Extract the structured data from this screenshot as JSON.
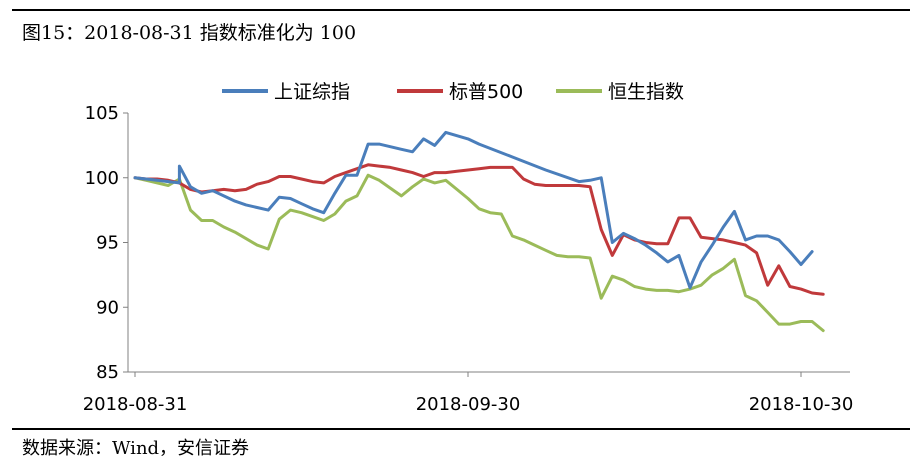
{
  "figure": {
    "title": "图15：2018-08-31 指数标准化为 100",
    "source": "数据来源：Wind，安信证券"
  },
  "chart_data": {
    "type": "line",
    "title": "",
    "xlabel": "",
    "ylabel": "",
    "ylim": [
      85,
      105
    ],
    "yticks": [
      "85",
      "90",
      "95",
      "100",
      "105"
    ],
    "x_tick_labels": [
      "2018-08-31",
      "2018-09-30",
      "2018-10-30"
    ],
    "x_range_days": [
      0,
      60
    ],
    "grid": false,
    "legend_position": "top",
    "series": [
      {
        "name": "上证综指",
        "color": "#4a7ebb",
        "points": [
          [
            0,
            100
          ],
          [
            1,
            99.9
          ],
          [
            2,
            99.8
          ],
          [
            3,
            99.7
          ],
          [
            4,
            99.6
          ],
          [
            4,
            100.9
          ],
          [
            5,
            99.3
          ],
          [
            6,
            98.8
          ],
          [
            7,
            99.0
          ],
          [
            8,
            98.6
          ],
          [
            9,
            98.2
          ],
          [
            10,
            97.9
          ],
          [
            11,
            97.7
          ],
          [
            12,
            97.5
          ],
          [
            13,
            98.5
          ],
          [
            14,
            98.4
          ],
          [
            15,
            98.0
          ],
          [
            16,
            97.6
          ],
          [
            17,
            97.3
          ],
          [
            18,
            98.8
          ],
          [
            19,
            100.2
          ],
          [
            20,
            100.2
          ],
          [
            21,
            102.6
          ],
          [
            22,
            102.6
          ],
          [
            23,
            102.4
          ],
          [
            24,
            102.2
          ],
          [
            25,
            102.0
          ],
          [
            26,
            103.0
          ],
          [
            27,
            102.5
          ],
          [
            28,
            103.5
          ],
          [
            30,
            103.0
          ],
          [
            31,
            102.6
          ],
          [
            34,
            101.6
          ],
          [
            37,
            100.6
          ],
          [
            40,
            99.7
          ],
          [
            41,
            99.8
          ],
          [
            42,
            100.0
          ],
          [
            43,
            95.0
          ],
          [
            44,
            95.7
          ],
          [
            45,
            95.3
          ],
          [
            46,
            94.8
          ],
          [
            47,
            94.2
          ],
          [
            48,
            93.5
          ],
          [
            49,
            94.0
          ],
          [
            50,
            91.5
          ],
          [
            51,
            93.5
          ],
          [
            52,
            94.8
          ],
          [
            53,
            96.2
          ],
          [
            54,
            97.4
          ],
          [
            55,
            95.2
          ],
          [
            56,
            95.5
          ],
          [
            57,
            95.5
          ],
          [
            58,
            95.2
          ],
          [
            59,
            94.3
          ],
          [
            60,
            93.3
          ],
          [
            61,
            94.3
          ]
        ]
      },
      {
        "name": "标普500",
        "color": "#c0393b",
        "points": [
          [
            0,
            100
          ],
          [
            1,
            99.9
          ],
          [
            2,
            99.9
          ],
          [
            3,
            99.8
          ],
          [
            4,
            99.6
          ],
          [
            5,
            99.1
          ],
          [
            6,
            98.9
          ],
          [
            7,
            99.0
          ],
          [
            8,
            99.1
          ],
          [
            9,
            99.0
          ],
          [
            10,
            99.1
          ],
          [
            11,
            99.5
          ],
          [
            12,
            99.7
          ],
          [
            13,
            100.1
          ],
          [
            14,
            100.1
          ],
          [
            15,
            99.9
          ],
          [
            16,
            99.7
          ],
          [
            17,
            99.6
          ],
          [
            18,
            100.1
          ],
          [
            19,
            100.4
          ],
          [
            20,
            100.7
          ],
          [
            21,
            101.0
          ],
          [
            22,
            100.9
          ],
          [
            23,
            100.8
          ],
          [
            24,
            100.6
          ],
          [
            25,
            100.4
          ],
          [
            26,
            100.1
          ],
          [
            27,
            100.4
          ],
          [
            28,
            100.4
          ],
          [
            29,
            100.5
          ],
          [
            30,
            100.6
          ],
          [
            31,
            100.7
          ],
          [
            32,
            100.8
          ],
          [
            33,
            100.8
          ],
          [
            34,
            100.8
          ],
          [
            35,
            99.9
          ],
          [
            36,
            99.5
          ],
          [
            37,
            99.4
          ],
          [
            38,
            99.4
          ],
          [
            39,
            99.4
          ],
          [
            40,
            99.4
          ],
          [
            41,
            99.3
          ],
          [
            42,
            96.0
          ],
          [
            43,
            94.0
          ],
          [
            44,
            95.6
          ],
          [
            45,
            95.2
          ],
          [
            46,
            95.0
          ],
          [
            47,
            94.9
          ],
          [
            48,
            94.9
          ],
          [
            49,
            96.9
          ],
          [
            50,
            96.9
          ],
          [
            51,
            95.4
          ],
          [
            52,
            95.3
          ],
          [
            53,
            95.2
          ],
          [
            54,
            95.0
          ],
          [
            55,
            94.8
          ],
          [
            56,
            94.2
          ],
          [
            57,
            91.7
          ],
          [
            58,
            93.2
          ],
          [
            59,
            91.6
          ],
          [
            60,
            91.4
          ],
          [
            61,
            91.1
          ],
          [
            62,
            91.0
          ]
        ]
      },
      {
        "name": "恒生指数",
        "color": "#9bbb59",
        "points": [
          [
            0,
            100
          ],
          [
            1,
            99.8
          ],
          [
            2,
            99.6
          ],
          [
            3,
            99.4
          ],
          [
            4,
            99.9
          ],
          [
            5,
            97.5
          ],
          [
            6,
            96.7
          ],
          [
            7,
            96.7
          ],
          [
            8,
            96.2
          ],
          [
            9,
            95.8
          ],
          [
            10,
            95.3
          ],
          [
            11,
            94.8
          ],
          [
            12,
            94.5
          ],
          [
            13,
            96.8
          ],
          [
            14,
            97.5
          ],
          [
            15,
            97.3
          ],
          [
            16,
            97.0
          ],
          [
            17,
            96.7
          ],
          [
            18,
            97.2
          ],
          [
            19,
            98.2
          ],
          [
            20,
            98.6
          ],
          [
            21,
            100.2
          ],
          [
            22,
            99.8
          ],
          [
            23,
            99.2
          ],
          [
            24,
            98.6
          ],
          [
            25,
            99.3
          ],
          [
            26,
            99.9
          ],
          [
            27,
            99.6
          ],
          [
            28,
            99.8
          ],
          [
            29,
            99.1
          ],
          [
            30,
            98.4
          ],
          [
            31,
            97.6
          ],
          [
            32,
            97.3
          ],
          [
            33,
            97.2
          ],
          [
            34,
            95.5
          ],
          [
            35,
            95.2
          ],
          [
            36,
            94.8
          ],
          [
            37,
            94.4
          ],
          [
            38,
            94.0
          ],
          [
            39,
            93.9
          ],
          [
            40,
            93.9
          ],
          [
            41,
            93.8
          ],
          [
            42,
            90.7
          ],
          [
            43,
            92.4
          ],
          [
            44,
            92.1
          ],
          [
            45,
            91.6
          ],
          [
            46,
            91.4
          ],
          [
            47,
            91.3
          ],
          [
            48,
            91.3
          ],
          [
            49,
            91.2
          ],
          [
            50,
            91.4
          ],
          [
            51,
            91.7
          ],
          [
            52,
            92.5
          ],
          [
            53,
            93.0
          ],
          [
            54,
            93.7
          ],
          [
            55,
            90.9
          ],
          [
            56,
            90.5
          ],
          [
            57,
            89.6
          ],
          [
            58,
            88.7
          ],
          [
            59,
            88.7
          ],
          [
            60,
            88.9
          ],
          [
            61,
            88.9
          ],
          [
            62,
            88.2
          ]
        ]
      }
    ]
  }
}
